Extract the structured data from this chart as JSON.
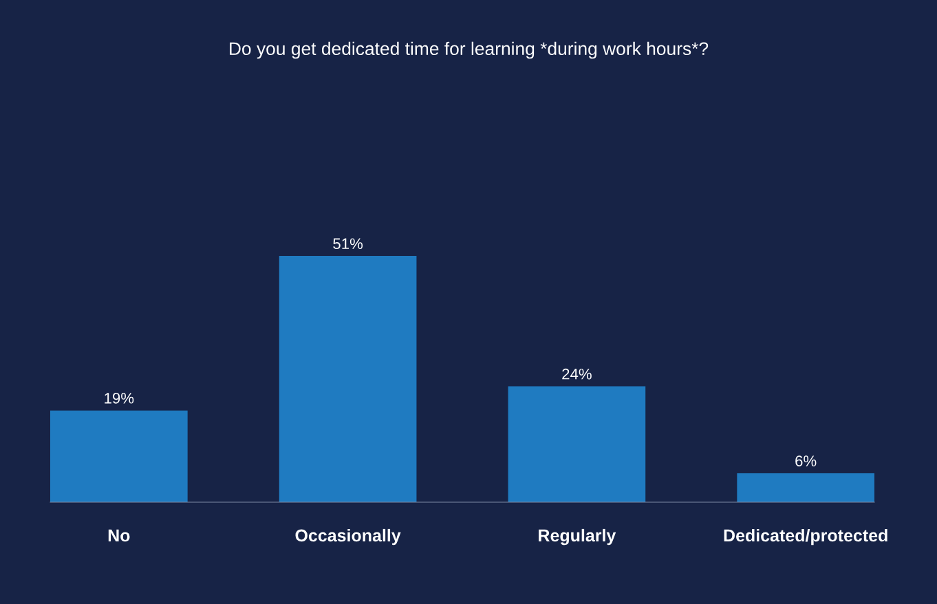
{
  "chart_data": {
    "type": "bar",
    "title": "Do you get dedicated time for learning *during work hours*?",
    "categories": [
      "No",
      "Occasionally",
      "Regularly",
      "Dedicated/protected"
    ],
    "values": [
      19,
      51,
      24,
      6
    ],
    "value_labels": [
      "19%",
      "51%",
      "24%",
      "6%"
    ],
    "color": "#1f7bc1",
    "grid": false,
    "legend": false
  }
}
